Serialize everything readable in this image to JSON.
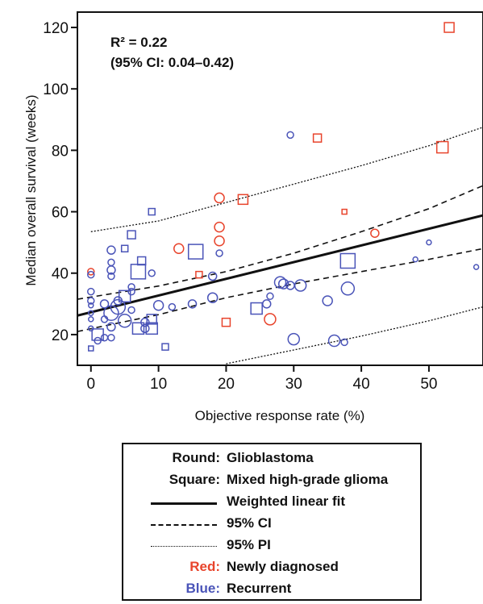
{
  "colors": {
    "newly_diagnosed": "#e8442c",
    "recurrent": "#4a54b8",
    "axis": "#111111"
  },
  "chart_data": {
    "type": "scatter",
    "xlabel": "Objective response rate (%)",
    "ylabel": "Median overall survival (weeks)",
    "xlim": [
      -2,
      58
    ],
    "ylim": [
      10,
      125
    ],
    "xticks": [
      "0",
      "10",
      "20",
      "30",
      "40",
      "50"
    ],
    "yticks": [
      "20",
      "40",
      "60",
      "80",
      "100",
      "120"
    ],
    "grid": false,
    "annotation_line1": "R² = 0.22",
    "annotation_line2": "(95% CI: 0.04–0.42)",
    "fit": {
      "name": "Weighted linear fit",
      "points": [
        [
          -2,
          26.2
        ],
        [
          58,
          58.8
        ]
      ]
    },
    "ci_upper": {
      "name": "95% CI",
      "points": [
        [
          -2,
          31.5
        ],
        [
          10,
          35.8
        ],
        [
          20,
          40.5
        ],
        [
          30,
          46.5
        ],
        [
          40,
          53.5
        ],
        [
          50,
          61.0
        ],
        [
          58,
          68.5
        ]
      ]
    },
    "ci_lower": {
      "name": "95% CI",
      "points": [
        [
          -2,
          21.0
        ],
        [
          10,
          26.5
        ],
        [
          20,
          32.0
        ],
        [
          30,
          36.5
        ],
        [
          40,
          40.5
        ],
        [
          50,
          44.5
        ],
        [
          58,
          48.0
        ]
      ]
    },
    "pi_upper": {
      "name": "95% PI",
      "points": [
        [
          0,
          53.5
        ],
        [
          10,
          57.0
        ],
        [
          20,
          63.0
        ],
        [
          30,
          69.0
        ],
        [
          40,
          75.0
        ],
        [
          50,
          81.5
        ],
        [
          58,
          87.5
        ]
      ]
    },
    "pi_lower": {
      "name": "95% PI",
      "points": [
        [
          20,
          10.5
        ],
        [
          30,
          15.0
        ],
        [
          40,
          19.5
        ],
        [
          50,
          24.5
        ],
        [
          58,
          29.0
        ]
      ]
    },
    "points": [
      {
        "x": 53,
        "y": 120,
        "shape": "square",
        "group": "new",
        "size": 6
      },
      {
        "x": 33.5,
        "y": 84,
        "shape": "square",
        "group": "new",
        "size": 5
      },
      {
        "x": 52,
        "y": 81,
        "shape": "square",
        "group": "new",
        "size": 7
      },
      {
        "x": 22.5,
        "y": 64,
        "shape": "square",
        "group": "new",
        "size": 6
      },
      {
        "x": 37.5,
        "y": 60,
        "shape": "square",
        "group": "new",
        "size": 3
      },
      {
        "x": 16,
        "y": 39.5,
        "shape": "square",
        "group": "new",
        "size": 4
      },
      {
        "x": 20,
        "y": 24,
        "shape": "square",
        "group": "new",
        "size": 5
      },
      {
        "x": 19,
        "y": 64.5,
        "shape": "circle",
        "group": "new",
        "size": 6
      },
      {
        "x": 19,
        "y": 55,
        "shape": "circle",
        "group": "new",
        "size": 6
      },
      {
        "x": 19,
        "y": 50.5,
        "shape": "circle",
        "group": "new",
        "size": 6
      },
      {
        "x": 13,
        "y": 48,
        "shape": "circle",
        "group": "new",
        "size": 6
      },
      {
        "x": 42,
        "y": 53,
        "shape": "circle",
        "group": "new",
        "size": 5
      },
      {
        "x": 26.5,
        "y": 25,
        "shape": "circle",
        "group": "new",
        "size": 7
      },
      {
        "x": 0,
        "y": 40.5,
        "shape": "circle",
        "group": "new",
        "size": 4
      },
      {
        "x": 29.5,
        "y": 85,
        "shape": "circle",
        "group": "rec",
        "size": 4
      },
      {
        "x": 9,
        "y": 60,
        "shape": "square",
        "group": "rec",
        "size": 4
      },
      {
        "x": 6,
        "y": 52.5,
        "shape": "square",
        "group": "rec",
        "size": 5
      },
      {
        "x": 3,
        "y": 47.5,
        "shape": "circle",
        "group": "rec",
        "size": 5
      },
      {
        "x": 5,
        "y": 48,
        "shape": "square",
        "group": "rec",
        "size": 4
      },
      {
        "x": 15.5,
        "y": 47,
        "shape": "square",
        "group": "rec",
        "size": 9
      },
      {
        "x": 19,
        "y": 46.5,
        "shape": "circle",
        "group": "rec",
        "size": 4
      },
      {
        "x": 3,
        "y": 43.5,
        "shape": "circle",
        "group": "rec",
        "size": 4
      },
      {
        "x": 7.5,
        "y": 44,
        "shape": "square",
        "group": "rec",
        "size": 5
      },
      {
        "x": 7,
        "y": 40.5,
        "shape": "square",
        "group": "rec",
        "size": 9
      },
      {
        "x": 3,
        "y": 41,
        "shape": "circle",
        "group": "rec",
        "size": 5
      },
      {
        "x": 3,
        "y": 39,
        "shape": "circle",
        "group": "rec",
        "size": 4
      },
      {
        "x": 9,
        "y": 40,
        "shape": "circle",
        "group": "rec",
        "size": 4
      },
      {
        "x": 0,
        "y": 39.5,
        "shape": "circle",
        "group": "rec",
        "size": 4
      },
      {
        "x": 18,
        "y": 39,
        "shape": "circle",
        "group": "rec",
        "size": 5
      },
      {
        "x": 38,
        "y": 44,
        "shape": "square",
        "group": "rec",
        "size": 9
      },
      {
        "x": 48,
        "y": 44.5,
        "shape": "circle",
        "group": "rec",
        "size": 3
      },
      {
        "x": 50,
        "y": 50,
        "shape": "circle",
        "group": "rec",
        "size": 3
      },
      {
        "x": 57,
        "y": 42,
        "shape": "circle",
        "group": "rec",
        "size": 3
      },
      {
        "x": 0,
        "y": 34,
        "shape": "circle",
        "group": "rec",
        "size": 4
      },
      {
        "x": 0,
        "y": 31,
        "shape": "circle",
        "group": "rec",
        "size": 4
      },
      {
        "x": 0,
        "y": 29.5,
        "shape": "circle",
        "group": "rec",
        "size": 3
      },
      {
        "x": 0,
        "y": 27,
        "shape": "circle",
        "group": "rec",
        "size": 3
      },
      {
        "x": 0,
        "y": 25,
        "shape": "circle",
        "group": "rec",
        "size": 3
      },
      {
        "x": 0,
        "y": 22,
        "shape": "circle",
        "group": "rec",
        "size": 3
      },
      {
        "x": 0,
        "y": 15.5,
        "shape": "square",
        "group": "rec",
        "size": 3
      },
      {
        "x": 1,
        "y": 20,
        "shape": "square",
        "group": "rec",
        "size": 7
      },
      {
        "x": 1,
        "y": 18,
        "shape": "circle",
        "group": "rec",
        "size": 4
      },
      {
        "x": 2,
        "y": 30,
        "shape": "circle",
        "group": "rec",
        "size": 5
      },
      {
        "x": 2,
        "y": 25,
        "shape": "circle",
        "group": "rec",
        "size": 4
      },
      {
        "x": 2,
        "y": 19,
        "shape": "circle",
        "group": "rec",
        "size": 4
      },
      {
        "x": 3,
        "y": 27,
        "shape": "circle",
        "group": "rec",
        "size": 9
      },
      {
        "x": 3,
        "y": 22.5,
        "shape": "circle",
        "group": "rec",
        "size": 5
      },
      {
        "x": 3,
        "y": 19,
        "shape": "circle",
        "group": "rec",
        "size": 4
      },
      {
        "x": 4,
        "y": 29,
        "shape": "circle",
        "group": "rec",
        "size": 9
      },
      {
        "x": 4,
        "y": 31,
        "shape": "circle",
        "group": "rec",
        "size": 5
      },
      {
        "x": 5,
        "y": 32.5,
        "shape": "square",
        "group": "rec",
        "size": 7
      },
      {
        "x": 5,
        "y": 24.5,
        "shape": "circle",
        "group": "rec",
        "size": 8
      },
      {
        "x": 6,
        "y": 35.5,
        "shape": "circle",
        "group": "rec",
        "size": 4
      },
      {
        "x": 6,
        "y": 34,
        "shape": "circle",
        "group": "rec",
        "size": 4
      },
      {
        "x": 6,
        "y": 28,
        "shape": "circle",
        "group": "rec",
        "size": 4
      },
      {
        "x": 7,
        "y": 22,
        "shape": "square",
        "group": "rec",
        "size": 7
      },
      {
        "x": 8,
        "y": 24,
        "shape": "circle",
        "group": "rec",
        "size": 5
      },
      {
        "x": 8,
        "y": 22,
        "shape": "circle",
        "group": "rec",
        "size": 5
      },
      {
        "x": 9,
        "y": 25,
        "shape": "square",
        "group": "rec",
        "size": 6
      },
      {
        "x": 9,
        "y": 22,
        "shape": "square",
        "group": "rec",
        "size": 7
      },
      {
        "x": 10,
        "y": 29.5,
        "shape": "circle",
        "group": "rec",
        "size": 6
      },
      {
        "x": 11,
        "y": 16,
        "shape": "square",
        "group": "rec",
        "size": 4
      },
      {
        "x": 12,
        "y": 29,
        "shape": "circle",
        "group": "rec",
        "size": 4
      },
      {
        "x": 15,
        "y": 30,
        "shape": "circle",
        "group": "rec",
        "size": 5
      },
      {
        "x": 18,
        "y": 32,
        "shape": "circle",
        "group": "rec",
        "size": 6
      },
      {
        "x": 24.5,
        "y": 28.5,
        "shape": "square",
        "group": "rec",
        "size": 7
      },
      {
        "x": 26,
        "y": 30,
        "shape": "circle",
        "group": "rec",
        "size": 5
      },
      {
        "x": 26.5,
        "y": 32.5,
        "shape": "circle",
        "group": "rec",
        "size": 4
      },
      {
        "x": 28,
        "y": 37,
        "shape": "circle",
        "group": "rec",
        "size": 7
      },
      {
        "x": 28.5,
        "y": 36.5,
        "shape": "circle",
        "group": "rec",
        "size": 6
      },
      {
        "x": 29.5,
        "y": 36,
        "shape": "circle",
        "group": "rec",
        "size": 5
      },
      {
        "x": 31,
        "y": 36,
        "shape": "circle",
        "group": "rec",
        "size": 7
      },
      {
        "x": 30,
        "y": 18.5,
        "shape": "circle",
        "group": "rec",
        "size": 7
      },
      {
        "x": 35,
        "y": 31,
        "shape": "circle",
        "group": "rec",
        "size": 6
      },
      {
        "x": 36,
        "y": 18,
        "shape": "circle",
        "group": "rec",
        "size": 7
      },
      {
        "x": 37.5,
        "y": 17.5,
        "shape": "circle",
        "group": "rec",
        "size": 4
      },
      {
        "x": 38,
        "y": 35,
        "shape": "circle",
        "group": "rec",
        "size": 8
      }
    ]
  },
  "legend": {
    "rows": [
      {
        "key": "Round:",
        "text": "Glioblastoma",
        "key_color": "#111111"
      },
      {
        "key": "Square:",
        "text": "Mixed high-grade glioma",
        "key_color": "#111111"
      },
      {
        "key": "",
        "text": "Weighted linear fit",
        "line": "solid"
      },
      {
        "key": "",
        "text": "95% CI",
        "line": "dashed"
      },
      {
        "key": "",
        "text": "95% PI",
        "line": "dotted"
      },
      {
        "key": "Red:",
        "text": "Newly diagnosed",
        "key_color": "#e8442c"
      },
      {
        "key": "Blue:",
        "text": "Recurrent",
        "key_color": "#4a54b8"
      }
    ]
  }
}
